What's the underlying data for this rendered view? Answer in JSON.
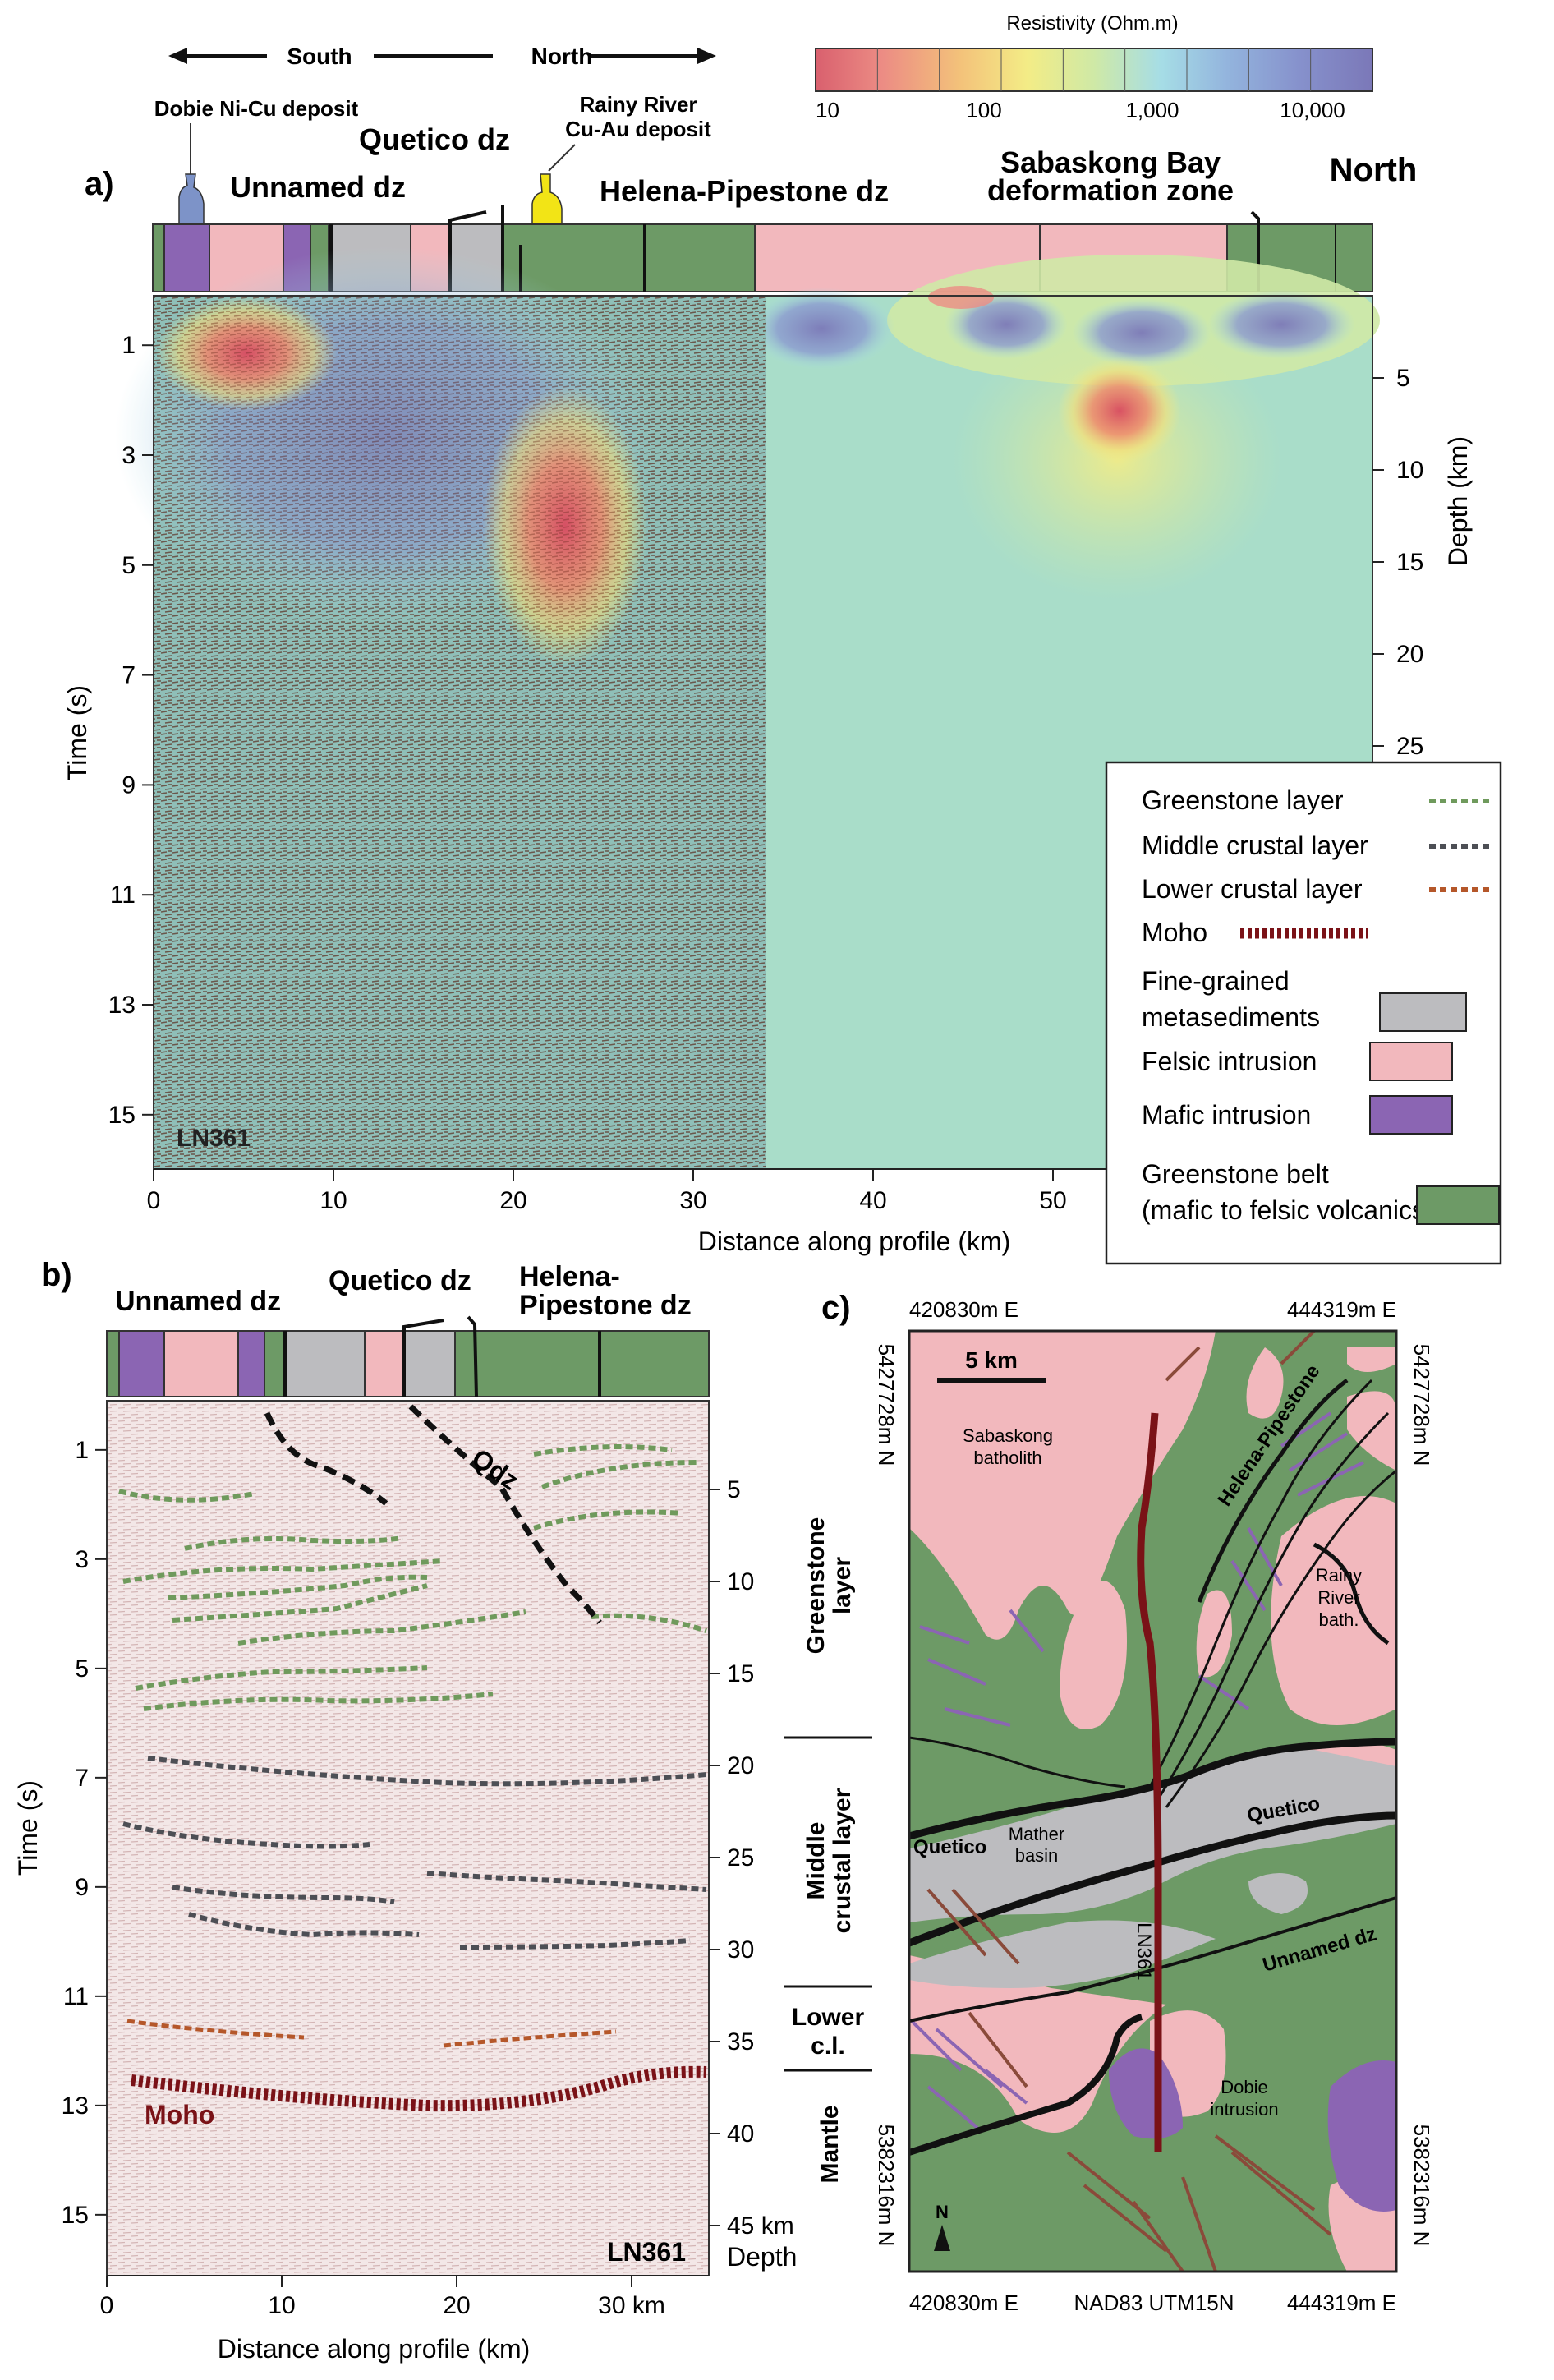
{
  "panel_a": {
    "label": "a)",
    "direction_south": "South",
    "direction_north": "North",
    "resistivity": {
      "title": "Resistivity (Ohm.m)",
      "ticks": [
        "10",
        "100",
        "1,000",
        "10,000"
      ],
      "colors": [
        "#d9606e",
        "#ec8c84",
        "#f3c27a",
        "#f3ec86",
        "#cfe9a6",
        "#a6dde6",
        "#93b4dd",
        "#8691cc",
        "#7b78b8"
      ]
    },
    "deposits": [
      {
        "label_1": "Dobie Ni-Cu deposit",
        "label_2": "",
        "color": "#7d93c8"
      },
      {
        "label_1": "Rainy River",
        "label_2": "Cu-Au deposit",
        "color": "#f2e416"
      }
    ],
    "zones": {
      "unnamed": "Unnamed dz",
      "quetico": "Quetico dz",
      "helena": "Helena-Pipestone dz",
      "sabaskong_1": "Sabaskong Bay",
      "sabaskong_2": "deformation zone",
      "north": "North"
    },
    "y_axis_label": "Time (s)",
    "y_ticks": [
      "1",
      "3",
      "5",
      "7",
      "9",
      "11",
      "13",
      "15"
    ],
    "depth_label": "Depth (km)",
    "depth_ticks": [
      "5",
      "10",
      "15",
      "20",
      "25"
    ],
    "x_axis_label": "Distance along profile (km)",
    "x_ticks": [
      "0",
      "10",
      "20",
      "30",
      "40",
      "50"
    ],
    "line_name": "LN361"
  },
  "legend": {
    "items": [
      {
        "label_1": "Greenstone layer",
        "label_2": "",
        "kind": "dash",
        "color": "#6f9a5c"
      },
      {
        "label_1": "Middle crustal layer",
        "label_2": "",
        "kind": "dash",
        "color": "#4d4f55"
      },
      {
        "label_1": "Lower crustal layer",
        "label_2": "",
        "kind": "dash",
        "color": "#b5572a"
      },
      {
        "label_1": "Moho",
        "label_2": "",
        "kind": "moho",
        "color": "#7a1217"
      },
      {
        "label_1": "Fine-grained",
        "label_2": "metasediments",
        "kind": "box",
        "color": "#bcbcbf"
      },
      {
        "label_1": "Felsic intrusion",
        "label_2": "",
        "kind": "box",
        "color": "#f2b8bd"
      },
      {
        "label_1": "Mafic intrusion",
        "label_2": "",
        "kind": "box",
        "color": "#8b65b3"
      },
      {
        "label_1": "Greenstone belt",
        "label_2": "(mafic to felsic volcanics)",
        "kind": "box",
        "color": "#6d9a66"
      }
    ]
  },
  "panel_b": {
    "label": "b)",
    "zones": {
      "unnamed": "Unnamed dz",
      "quetico": "Quetico dz",
      "helena_1": "Helena-",
      "helena_2": "Pipestone dz"
    },
    "qdz_label": "Qdz",
    "moho_label": "Moho",
    "y_axis_label": "Time (s)",
    "y_ticks": [
      "1",
      "3",
      "5",
      "7",
      "9",
      "11",
      "13",
      "15"
    ],
    "depth_ticks": [
      "5",
      "10",
      "15",
      "20",
      "25",
      "30",
      "35",
      "40",
      "45 km"
    ],
    "depth_word": "Depth",
    "x_axis_label": "Distance along profile (km)",
    "x_ticks": [
      "0",
      "10",
      "20",
      "30 km"
    ],
    "line_name": "LN361",
    "layers": [
      {
        "line_1": "Greenstone",
        "line_2": "layer"
      },
      {
        "line_1": "Middle",
        "line_2": "crustal layer"
      },
      {
        "line_1": "Lower",
        "line_2": "c.l."
      },
      {
        "line_1": "Mantle",
        "line_2": ""
      }
    ]
  },
  "panel_c": {
    "label": "c)",
    "top_left_easting": "420830m E",
    "top_right_easting": "444319m E",
    "bottom_left_easting": "420830m E",
    "bottom_right_easting": "444319m E",
    "datum": "NAD83 UTM15N",
    "northing_top": "5427728m N",
    "northing_bottom": "5382316m N",
    "scale_bar": "5 km",
    "north_arrow": "N",
    "labels": {
      "sabaskong_1": "Sabaskong",
      "sabaskong_2": "batholith",
      "helena": "Helena-Pipestone",
      "rainy_1": "Rainy",
      "rainy_2": "River",
      "rainy_3": "bath.",
      "quetico_left": "Quetico",
      "quetico_right": "Quetico",
      "mather_1": "Mather",
      "mather_2": "basin",
      "unnamed": "Unnamed dz",
      "line": "LN361",
      "dobie_1": "Dobie",
      "dobie_2": "intrusion"
    }
  }
}
